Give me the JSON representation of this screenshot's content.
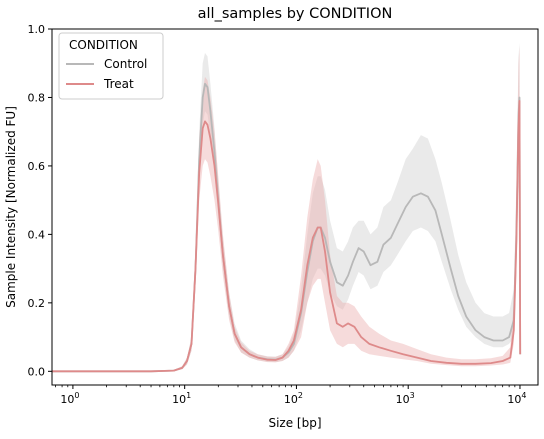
{
  "chart_data": {
    "type": "line",
    "title": "all_samples by CONDITION",
    "xlabel": "Size [bp]",
    "ylabel": "Sample Intensity [Normalized FU]",
    "xscale": "log",
    "xlim": [
      0.65,
      14500
    ],
    "ylim": [
      -0.04,
      1.0
    ],
    "x_ticks": [
      {
        "value": 1,
        "base": "10",
        "exp": "0"
      },
      {
        "value": 10,
        "base": "10",
        "exp": "1"
      },
      {
        "value": 100,
        "base": "10",
        "exp": "2"
      },
      {
        "value": 1000,
        "base": "10",
        "exp": "3"
      },
      {
        "value": 10000,
        "base": "10",
        "exp": "4"
      }
    ],
    "y_ticks": [
      "0.0",
      "0.2",
      "0.4",
      "0.6",
      "0.8",
      "1.0"
    ],
    "grid": false,
    "legend": {
      "title": "CONDITION",
      "placement": "top-left"
    },
    "series": [
      {
        "name": "Control",
        "color": "#b8b8b8",
        "band_color": "#d0d0d0",
        "points": [
          [
            0.65,
            0,
            0,
            0
          ],
          [
            2,
            0,
            0,
            0
          ],
          [
            5,
            0,
            0,
            0
          ],
          [
            8,
            0.002,
            0,
            0.004
          ],
          [
            9.5,
            0.01,
            0.006,
            0.015
          ],
          [
            10.5,
            0.03,
            0.02,
            0.04
          ],
          [
            11.5,
            0.08,
            0.06,
            0.1
          ],
          [
            12.5,
            0.3,
            0.26,
            0.36
          ],
          [
            13.5,
            0.62,
            0.55,
            0.7
          ],
          [
            14.5,
            0.8,
            0.72,
            0.9
          ],
          [
            15.2,
            0.84,
            0.76,
            0.93
          ],
          [
            16,
            0.83,
            0.75,
            0.92
          ],
          [
            17,
            0.76,
            0.69,
            0.84
          ],
          [
            18.5,
            0.64,
            0.58,
            0.71
          ],
          [
            20,
            0.5,
            0.45,
            0.56
          ],
          [
            22,
            0.34,
            0.3,
            0.39
          ],
          [
            25,
            0.19,
            0.16,
            0.23
          ],
          [
            28,
            0.11,
            0.09,
            0.14
          ],
          [
            32,
            0.07,
            0.055,
            0.09
          ],
          [
            38,
            0.05,
            0.04,
            0.065
          ],
          [
            45,
            0.04,
            0.032,
            0.05
          ],
          [
            55,
            0.035,
            0.028,
            0.044
          ],
          [
            65,
            0.034,
            0.027,
            0.043
          ],
          [
            75,
            0.04,
            0.03,
            0.05
          ],
          [
            85,
            0.055,
            0.04,
            0.072
          ],
          [
            95,
            0.08,
            0.06,
            0.11
          ],
          [
            110,
            0.17,
            0.12,
            0.24
          ],
          [
            125,
            0.29,
            0.2,
            0.4
          ],
          [
            140,
            0.38,
            0.27,
            0.52
          ],
          [
            155,
            0.42,
            0.3,
            0.57
          ],
          [
            165,
            0.42,
            0.3,
            0.57
          ],
          [
            180,
            0.39,
            0.28,
            0.53
          ],
          [
            200,
            0.32,
            0.23,
            0.44
          ],
          [
            230,
            0.26,
            0.19,
            0.36
          ],
          [
            260,
            0.25,
            0.18,
            0.35
          ],
          [
            290,
            0.28,
            0.21,
            0.38
          ],
          [
            320,
            0.32,
            0.25,
            0.42
          ],
          [
            360,
            0.36,
            0.29,
            0.44
          ],
          [
            400,
            0.35,
            0.28,
            0.44
          ],
          [
            460,
            0.31,
            0.24,
            0.4
          ],
          [
            530,
            0.32,
            0.25,
            0.42
          ],
          [
            600,
            0.37,
            0.29,
            0.48
          ],
          [
            700,
            0.39,
            0.31,
            0.5
          ],
          [
            800,
            0.43,
            0.34,
            0.55
          ],
          [
            950,
            0.48,
            0.38,
            0.62
          ],
          [
            1100,
            0.51,
            0.41,
            0.65
          ],
          [
            1300,
            0.52,
            0.42,
            0.69
          ],
          [
            1500,
            0.51,
            0.41,
            0.68
          ],
          [
            1750,
            0.47,
            0.38,
            0.62
          ],
          [
            2000,
            0.4,
            0.32,
            0.55
          ],
          [
            2400,
            0.3,
            0.24,
            0.44
          ],
          [
            2800,
            0.22,
            0.18,
            0.34
          ],
          [
            3300,
            0.16,
            0.13,
            0.26
          ],
          [
            4000,
            0.12,
            0.1,
            0.2
          ],
          [
            4800,
            0.1,
            0.08,
            0.17
          ],
          [
            5800,
            0.09,
            0.07,
            0.16
          ],
          [
            7000,
            0.09,
            0.07,
            0.16
          ],
          [
            8000,
            0.1,
            0.08,
            0.17
          ],
          [
            8800,
            0.15,
            0.1,
            0.24
          ],
          [
            9300,
            0.4,
            0.3,
            0.55
          ],
          [
            9700,
            0.75,
            0.6,
            0.92
          ],
          [
            9900,
            0.8,
            0.65,
            0.96
          ],
          [
            10050,
            0.05,
            0.04,
            0.06
          ]
        ]
      },
      {
        "name": "Treat",
        "color": "#de8a8a",
        "band_color": "#eab0b0",
        "points": [
          [
            0.65,
            0,
            0,
            0
          ],
          [
            2,
            0,
            0,
            0
          ],
          [
            5,
            0,
            0,
            0
          ],
          [
            8,
            0.002,
            0,
            0.004
          ],
          [
            9.5,
            0.01,
            0.006,
            0.015
          ],
          [
            10.5,
            0.03,
            0.02,
            0.04
          ],
          [
            11.5,
            0.08,
            0.06,
            0.1
          ],
          [
            12.5,
            0.3,
            0.25,
            0.36
          ],
          [
            13.5,
            0.58,
            0.5,
            0.68
          ],
          [
            14.5,
            0.71,
            0.6,
            0.82
          ],
          [
            15.2,
            0.73,
            0.62,
            0.86
          ],
          [
            16,
            0.72,
            0.61,
            0.85
          ],
          [
            17,
            0.68,
            0.57,
            0.8
          ],
          [
            18.5,
            0.6,
            0.5,
            0.7
          ],
          [
            20,
            0.49,
            0.41,
            0.57
          ],
          [
            22,
            0.34,
            0.28,
            0.4
          ],
          [
            25,
            0.19,
            0.15,
            0.23
          ],
          [
            28,
            0.11,
            0.085,
            0.13
          ],
          [
            32,
            0.07,
            0.055,
            0.085
          ],
          [
            38,
            0.05,
            0.04,
            0.06
          ],
          [
            45,
            0.04,
            0.032,
            0.05
          ],
          [
            55,
            0.034,
            0.027,
            0.043
          ],
          [
            65,
            0.033,
            0.026,
            0.042
          ],
          [
            75,
            0.04,
            0.03,
            0.05
          ],
          [
            85,
            0.06,
            0.04,
            0.08
          ],
          [
            95,
            0.09,
            0.06,
            0.12
          ],
          [
            110,
            0.18,
            0.1,
            0.28
          ],
          [
            125,
            0.31,
            0.2,
            0.45
          ],
          [
            140,
            0.39,
            0.25,
            0.56
          ],
          [
            155,
            0.42,
            0.27,
            0.62
          ],
          [
            165,
            0.42,
            0.27,
            0.6
          ],
          [
            180,
            0.35,
            0.2,
            0.5
          ],
          [
            200,
            0.23,
            0.12,
            0.34
          ],
          [
            230,
            0.14,
            0.08,
            0.22
          ],
          [
            260,
            0.13,
            0.07,
            0.2
          ],
          [
            290,
            0.14,
            0.08,
            0.2
          ],
          [
            330,
            0.13,
            0.08,
            0.19
          ],
          [
            380,
            0.1,
            0.06,
            0.16
          ],
          [
            450,
            0.08,
            0.05,
            0.13
          ],
          [
            550,
            0.07,
            0.045,
            0.11
          ],
          [
            700,
            0.06,
            0.04,
            0.09
          ],
          [
            900,
            0.05,
            0.035,
            0.08
          ],
          [
            1200,
            0.04,
            0.03,
            0.065
          ],
          [
            1600,
            0.03,
            0.022,
            0.05
          ],
          [
            2200,
            0.025,
            0.018,
            0.04
          ],
          [
            3000,
            0.022,
            0.015,
            0.035
          ],
          [
            4000,
            0.022,
            0.015,
            0.035
          ],
          [
            5500,
            0.024,
            0.017,
            0.038
          ],
          [
            7000,
            0.03,
            0.02,
            0.045
          ],
          [
            8200,
            0.04,
            0.025,
            0.07
          ],
          [
            8800,
            0.12,
            0.08,
            0.2
          ],
          [
            9300,
            0.38,
            0.28,
            0.52
          ],
          [
            9700,
            0.72,
            0.6,
            0.9
          ],
          [
            9900,
            0.79,
            0.66,
            0.95
          ],
          [
            10050,
            0.05,
            0.04,
            0.06
          ]
        ]
      }
    ]
  }
}
